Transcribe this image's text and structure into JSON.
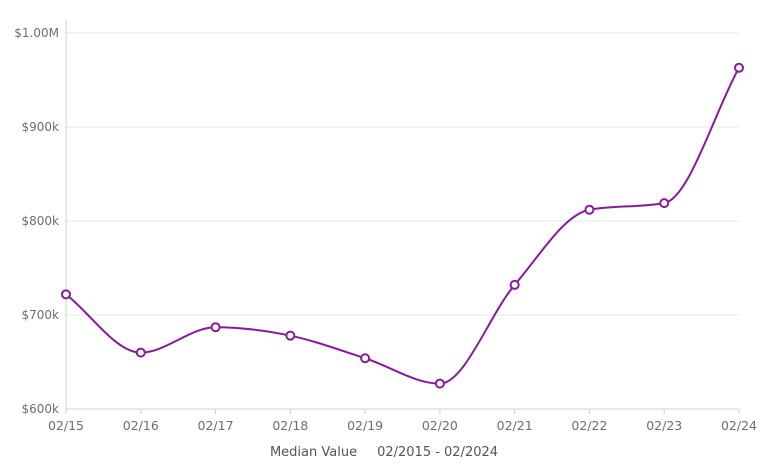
{
  "chart_data": {
    "type": "line",
    "categories": [
      "02/15",
      "02/16",
      "02/17",
      "02/18",
      "02/19",
      "02/20",
      "02/21",
      "02/22",
      "02/23",
      "02/24"
    ],
    "series": [
      {
        "name": "Median Value",
        "values": [
          722000,
          660000,
          687000,
          678000,
          654000,
          627000,
          732000,
          812000,
          819000,
          963000
        ]
      }
    ],
    "ylim": [
      600000,
      1000000
    ],
    "yticks": [
      {
        "value": 600000,
        "label": "$600k"
      },
      {
        "value": 700000,
        "label": "$700k"
      },
      {
        "value": 800000,
        "label": "$800k"
      },
      {
        "value": 900000,
        "label": "$900k"
      },
      {
        "value": 1000000,
        "label": "$1.00M"
      }
    ],
    "grid": true,
    "colors": {
      "line": "#861c9a",
      "grid": "#e6e6e6",
      "axis": "#cfcfcf",
      "text": "#6e6e6e"
    }
  },
  "legend": {
    "series_label": "Median Value",
    "range_label": "02/2015 - 02/2024"
  }
}
